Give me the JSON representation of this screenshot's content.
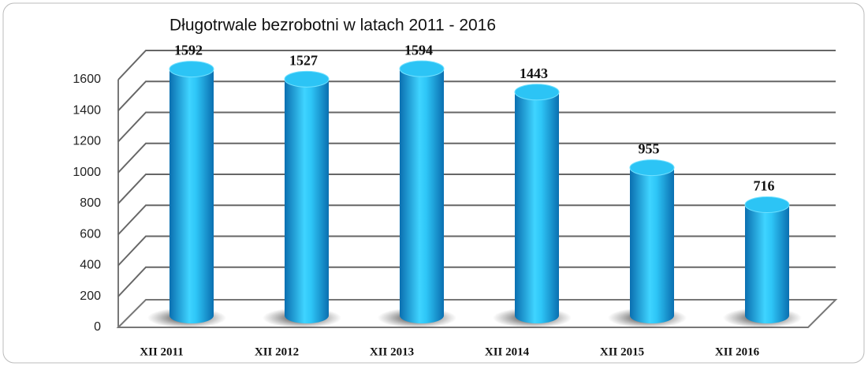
{
  "chart_data": {
    "type": "bar",
    "title": "Długotrwale bezrobotni w latach 2011 - 2016",
    "categories": [
      "XII 2011",
      "XII 2012",
      "XII 2013",
      "XII 2014",
      "XII 2015",
      "XII 2016"
    ],
    "values": [
      1592,
      1527,
      1594,
      1443,
      955,
      716
    ],
    "color": "#1cb8f0",
    "ylim": [
      0,
      1600
    ],
    "yticks": [
      0,
      200,
      400,
      600,
      800,
      1000,
      1200,
      1400,
      1600
    ],
    "grid": true
  }
}
